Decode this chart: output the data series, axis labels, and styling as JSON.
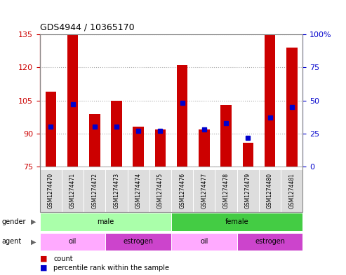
{
  "title": "GDS4944 / 10365170",
  "samples": [
    "GSM1274470",
    "GSM1274471",
    "GSM1274472",
    "GSM1274473",
    "GSM1274474",
    "GSM1274475",
    "GSM1274476",
    "GSM1274477",
    "GSM1274478",
    "GSM1274479",
    "GSM1274480",
    "GSM1274481"
  ],
  "count_values": [
    109,
    135,
    99,
    105,
    93,
    92,
    121,
    92,
    103,
    86,
    135,
    129
  ],
  "percentile_values": [
    30,
    47,
    30,
    30,
    27,
    27,
    48,
    28,
    33,
    22,
    37,
    45
  ],
  "ylim_left": [
    75,
    135
  ],
  "ylim_right": [
    0,
    100
  ],
  "yticks_left": [
    75,
    90,
    105,
    120,
    135
  ],
  "yticks_right": [
    0,
    25,
    50,
    75,
    100
  ],
  "bar_color": "#cc0000",
  "dot_color": "#0000cc",
  "bar_bottom": 75,
  "gender_groups": [
    {
      "label": "male",
      "start": 0,
      "end": 5,
      "color": "#aaffaa"
    },
    {
      "label": "female",
      "start": 6,
      "end": 11,
      "color": "#44cc44"
    }
  ],
  "agent_groups": [
    {
      "label": "oil",
      "start": 0,
      "end": 2,
      "color": "#ffaaff"
    },
    {
      "label": "estrogen",
      "start": 3,
      "end": 5,
      "color": "#cc44cc"
    },
    {
      "label": "oil",
      "start": 6,
      "end": 8,
      "color": "#ffaaff"
    },
    {
      "label": "estrogen",
      "start": 9,
      "end": 11,
      "color": "#cc44cc"
    }
  ],
  "left_tick_color": "#cc0000",
  "right_tick_color": "#0000cc",
  "grid_color": "#aaaaaa",
  "background_color": "#ffffff",
  "label_bg_color": "#dddddd",
  "fig_width": 4.93,
  "fig_height": 3.93
}
